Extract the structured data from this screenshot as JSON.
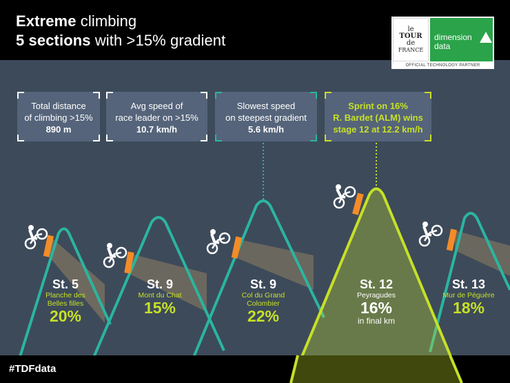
{
  "header": {
    "title_bold": "Extreme",
    "title_rest": " climbing",
    "subtitle_bold": "5 sections",
    "subtitle_rest": " with >15% gradient"
  },
  "sponsor": {
    "tdf_logo_line1": "le",
    "tdf_logo_line2": "TOUR",
    "tdf_logo_line3": "de",
    "tdf_logo_line4": "FRANCE",
    "dd_line1": "dimension",
    "dd_line2": "data",
    "partner_label": "OFFICIAL TECHNOLOGY PARTNER"
  },
  "stats": [
    {
      "line1": "Total distance",
      "line2": "of climbing >15%",
      "value": "890 m"
    },
    {
      "line1": "Avg speed of",
      "line2": "race leader on >15%",
      "value": "10.7 km/h"
    },
    {
      "line1": "Slowest speed",
      "line2": "on steepest gradient",
      "value": "5.6 km/h"
    },
    {
      "line1": "Sprint on 16%",
      "line2": "R. Bardet (ALM) wins",
      "line3": "stage 12 at 12.2 km/h"
    }
  ],
  "climbs": [
    {
      "stage": "St. 5",
      "name_line1": "Planche des",
      "name_line2": "Belles filles",
      "gradient": "20%"
    },
    {
      "stage": "St. 9",
      "name_line1": "Mont du Chat",
      "name_line2": "",
      "gradient": "15%"
    },
    {
      "stage": "St. 9",
      "name_line1": "Col du Grand",
      "name_line2": "Colombier",
      "gradient": "22%"
    },
    {
      "stage": "St. 12",
      "name_line1": "Peyragudes",
      "name_line2": "",
      "gradient": "16%",
      "note": "in final km"
    },
    {
      "stage": "St. 13",
      "name_line1": "Mur de Péguère",
      "name_line2": "",
      "gradient": "18%"
    }
  ],
  "footer": {
    "hashtag": "#TDFdata"
  },
  "colors": {
    "background": "#3d4a5a",
    "teal": "#2bb5a0",
    "lime": "#c6e028",
    "orange": "#f28c28"
  }
}
